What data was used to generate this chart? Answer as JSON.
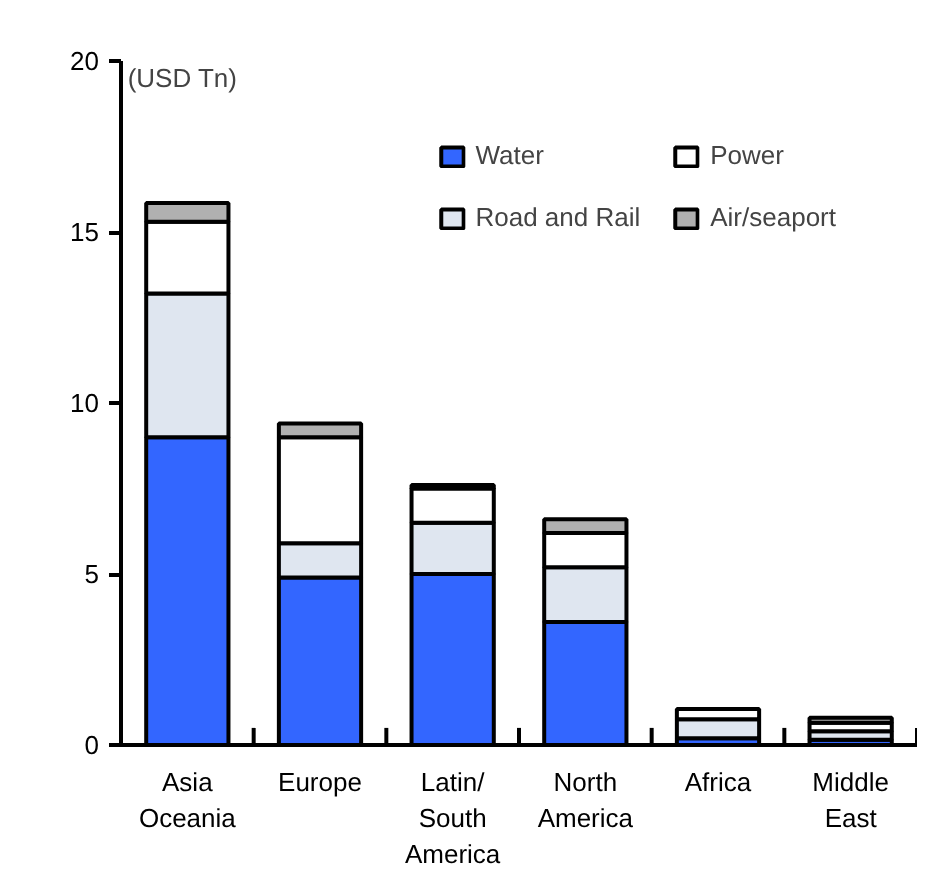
{
  "chart_data": {
    "type": "bar",
    "stacked": true,
    "ylabel": "(USD Tn)",
    "categories": [
      "Asia\nOceania",
      "Europe",
      "Latin/\nSouth\nAmerica",
      "North\nAmerica",
      "Africa",
      "Middle\nEast"
    ],
    "series": [
      {
        "name": "Water",
        "color": "#3366ff",
        "values": [
          9.0,
          4.9,
          5.0,
          3.6,
          0.2,
          0.15
        ]
      },
      {
        "name": "Road and Rail",
        "color": "#dfe6f0",
        "values": [
          4.2,
          1.0,
          1.5,
          1.6,
          0.55,
          0.25
        ]
      },
      {
        "name": "Power",
        "color": "#ffffff",
        "values": [
          2.1,
          3.1,
          1.0,
          1.0,
          0.3,
          0.25
        ]
      },
      {
        "name": "Air/seaport",
        "color": "#b0b0b0",
        "values": [
          0.55,
          0.4,
          0.1,
          0.4,
          null,
          0.15
        ]
      }
    ],
    "ylim": [
      0,
      20
    ],
    "yticks": [
      0,
      5,
      10,
      15,
      20
    ],
    "grid": false,
    "legend": "top right"
  }
}
